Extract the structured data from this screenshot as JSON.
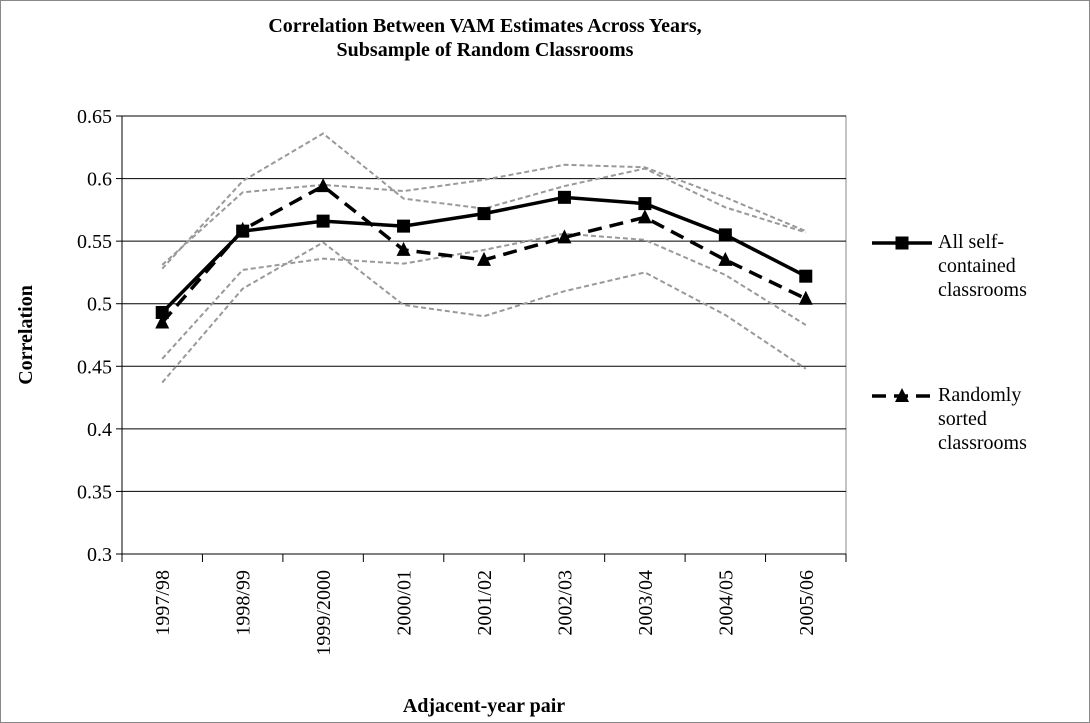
{
  "chart_data": {
    "type": "line",
    "title": "Correlation Between VAM Estimates Across Years, Subsample of Random Classrooms",
    "y_label": "Correlation",
    "x_label": "Adjacent-year pair",
    "categories": [
      "1997/98",
      "1998/99",
      "1999/2000",
      "2000/01",
      "2001/02",
      "2002/03",
      "2003/04",
      "2004/05",
      "2005/06"
    ],
    "ylim": [
      0.3,
      0.65
    ],
    "yticks": [
      0.3,
      0.35,
      0.4,
      0.45,
      0.5,
      0.55,
      0.6,
      0.65
    ],
    "grid": true,
    "legend": "right",
    "series": [
      {
        "color": "#999999",
        "dash": true,
        "width": 2,
        "values": [
          0.528,
          0.598,
          0.636,
          0.584,
          0.576,
          0.594,
          0.608,
          0.577,
          0.557
        ]
      },
      {
        "color": "#999999",
        "dash": true,
        "width": 2,
        "values": [
          0.531,
          0.589,
          0.595,
          0.59,
          0.599,
          0.611,
          0.609,
          0.585,
          0.558
        ]
      },
      {
        "color": "#999999",
        "dash": true,
        "width": 2,
        "values": [
          0.456,
          0.527,
          0.536,
          0.532,
          0.543,
          0.556,
          0.551,
          0.523,
          0.483
        ]
      },
      {
        "color": "#999999",
        "dash": true,
        "width": 2,
        "values": [
          0.437,
          0.512,
          0.549,
          0.499,
          0.49,
          0.51,
          0.525,
          0.491,
          0.448
        ]
      },
      {
        "name": "All self-contained classrooms",
        "color": "#000000",
        "dash": false,
        "width": 3.5,
        "marker": "square",
        "values": [
          0.493,
          0.558,
          0.566,
          0.562,
          0.572,
          0.585,
          0.58,
          0.555,
          0.522
        ]
      },
      {
        "name": "Randomly sorted classrooms",
        "color": "#000000",
        "dash": true,
        "width": 3.5,
        "marker": "triangle",
        "values": [
          0.485,
          0.559,
          0.594,
          0.543,
          0.535,
          0.553,
          0.569,
          0.535,
          0.504
        ]
      }
    ]
  }
}
